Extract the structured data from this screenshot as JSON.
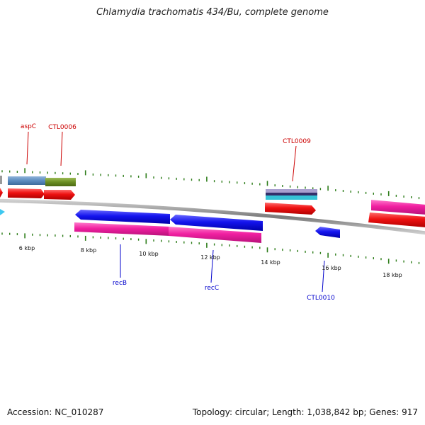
{
  "title": "Chlamydia trachomatis 434/Bu, complete genome",
  "footer": {
    "accession": "Accession: NC_010287",
    "stats": "Topology: circular; Length: 1,038,842 bp; Genes: 917"
  },
  "colors": {
    "background": "#ffffff",
    "backbone": "#808080",
    "ticks": "#2e7d1a",
    "forward_gene": "#e8141c",
    "reverse_gene": "#1010e0",
    "forward_cds_alt": "#6699cc",
    "olive_cds": "#6b8e23",
    "rrna_pink": "#f01fa0",
    "label_forward": "#cc0000",
    "label_reverse": "#0000cc"
  },
  "scale_labels": [
    "6 kbp",
    "8 kbp",
    "10 kbp",
    "12 kbp",
    "14 kbp",
    "16 kbp",
    "18 kbp"
  ],
  "gene_labels": {
    "forward": [
      "aspC",
      "CTL0006",
      "CTL0009"
    ],
    "reverse": [
      "recB",
      "recC",
      "CTL0010"
    ]
  }
}
